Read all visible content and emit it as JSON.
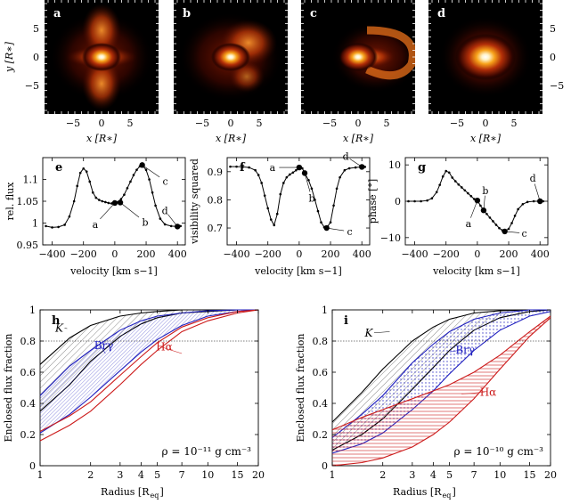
{
  "chart_data": [
    {
      "panel": "a",
      "type": "heatmap",
      "image": "disk with bipolar wind lobes",
      "xlabel": "x [R*]",
      "ylabel": "y [R*]",
      "xticks": [
        -5,
        0,
        5
      ],
      "yticks": [
        5,
        0,
        -5
      ],
      "xlim": [
        -10,
        10
      ],
      "ylim": [
        -10,
        10
      ],
      "colormap": "black-red-orange-white"
    },
    {
      "panel": "b",
      "type": "heatmap",
      "image": "asymmetric bright lobe on upper right",
      "xlabel": "x [R*]",
      "xticks": [
        -5,
        0,
        5
      ],
      "xlim": [
        -10,
        10
      ],
      "ylim": [
        -10,
        10
      ]
    },
    {
      "panel": "c",
      "type": "heatmap",
      "image": "bright arc to the right of the star",
      "xlabel": "x [R*]",
      "xticks": [
        -5,
        0,
        5
      ],
      "xlim": [
        -10,
        10
      ],
      "ylim": [
        -10,
        10
      ]
    },
    {
      "panel": "d",
      "type": "heatmap",
      "image": "compact symmetric continuum source",
      "xlabel": "x [R*]",
      "ylabel": "",
      "xticks": [
        -5,
        0,
        5
      ],
      "yticks": [
        5,
        0,
        -5
      ],
      "xlim": [
        -10,
        10
      ],
      "ylim": [
        -10,
        10
      ]
    },
    {
      "panel": "e",
      "type": "line",
      "xlabel": "velocity [km s−1]",
      "ylabel": "rel. flux",
      "xlim": [
        -460,
        450
      ],
      "ylim": [
        0.95,
        1.15
      ],
      "xticks": [
        -400,
        -200,
        0,
        200,
        400
      ],
      "yticks": [
        0.95,
        1,
        1.05,
        1.1
      ],
      "ytick_labels": [
        "0.95",
        "1",
        "1.05",
        "1.1"
      ],
      "x": [
        -440,
        -400,
        -360,
        -320,
        -290,
        -260,
        -240,
        -220,
        -200,
        -180,
        -160,
        -140,
        -120,
        -100,
        -80,
        -60,
        -40,
        -20,
        0,
        20,
        40,
        60,
        80,
        100,
        120,
        140,
        160,
        175,
        200,
        220,
        240,
        260,
        290,
        320,
        360,
        400,
        420
      ],
      "y": [
        0.993,
        0.99,
        0.991,
        0.996,
        1.015,
        1.05,
        1.085,
        1.115,
        1.125,
        1.118,
        1.095,
        1.07,
        1.058,
        1.053,
        1.05,
        1.048,
        1.046,
        1.045,
        1.046,
        1.048,
        1.055,
        1.065,
        1.08,
        1.095,
        1.11,
        1.122,
        1.13,
        1.133,
        1.122,
        1.1,
        1.07,
        1.04,
        1.01,
        0.997,
        0.993,
        0.992,
        0.993
      ],
      "marked_points": [
        {
          "label": "a",
          "x": 0,
          "y": 1.046
        },
        {
          "label": "b",
          "x": 35,
          "y": 1.047
        },
        {
          "label": "c",
          "x": 175,
          "y": 1.133
        },
        {
          "label": "d",
          "x": 400,
          "y": 0.992
        }
      ]
    },
    {
      "panel": "f",
      "type": "line",
      "xlabel": "velocity [km s−1]",
      "ylabel": "visibility squared",
      "xlim": [
        -460,
        450
      ],
      "ylim": [
        0.64,
        0.95
      ],
      "xticks": [
        -400,
        -200,
        0,
        200,
        400
      ],
      "yticks": [
        0.7,
        0.8,
        0.9
      ],
      "ytick_labels": [
        "0.7",
        "0.8",
        "0.9"
      ],
      "x": [
        -440,
        -400,
        -360,
        -320,
        -280,
        -260,
        -240,
        -220,
        -200,
        -180,
        -160,
        -140,
        -120,
        -100,
        -80,
        -60,
        -40,
        -20,
        0,
        20,
        35,
        60,
        80,
        100,
        120,
        140,
        160,
        175,
        200,
        220,
        240,
        260,
        290,
        320,
        360,
        400,
        420
      ],
      "y": [
        0.918,
        0.918,
        0.917,
        0.915,
        0.905,
        0.888,
        0.86,
        0.815,
        0.77,
        0.73,
        0.71,
        0.75,
        0.82,
        0.86,
        0.88,
        0.89,
        0.897,
        0.905,
        0.915,
        0.912,
        0.895,
        0.87,
        0.84,
        0.8,
        0.76,
        0.72,
        0.703,
        0.7,
        0.72,
        0.78,
        0.84,
        0.88,
        0.905,
        0.912,
        0.915,
        0.917,
        0.917
      ],
      "marked_points": [
        {
          "label": "a",
          "x": 0,
          "y": 0.915
        },
        {
          "label": "b",
          "x": 35,
          "y": 0.895
        },
        {
          "label": "c",
          "x": 175,
          "y": 0.7
        },
        {
          "label": "d",
          "x": 400,
          "y": 0.917
        }
      ]
    },
    {
      "panel": "g",
      "type": "line",
      "xlabel": "velocity [km s−1]",
      "ylabel": "phase [°]",
      "xlim": [
        -460,
        450
      ],
      "ylim": [
        -12,
        12
      ],
      "xticks": [
        -400,
        -200,
        0,
        200,
        400
      ],
      "yticks": [
        -10,
        0,
        10
      ],
      "ytick_labels": [
        "−10",
        "0",
        "10"
      ],
      "x": [
        -440,
        -400,
        -360,
        -320,
        -290,
        -260,
        -240,
        -220,
        -200,
        -180,
        -160,
        -140,
        -120,
        -100,
        -80,
        -60,
        -40,
        -20,
        0,
        20,
        40,
        60,
        80,
        100,
        120,
        140,
        160,
        175,
        200,
        220,
        240,
        260,
        290,
        320,
        360,
        400,
        420
      ],
      "y": [
        0,
        0,
        0,
        0.2,
        0.8,
        2.5,
        4.5,
        6.8,
        8.3,
        7.9,
        6.5,
        5.5,
        4.6,
        3.8,
        3.0,
        2.2,
        1.4,
        0.6,
        0.2,
        -1.2,
        -2.5,
        -3.5,
        -4.5,
        -5.5,
        -6.5,
        -7.4,
        -8.0,
        -8.3,
        -7.6,
        -6.0,
        -4.0,
        -2.2,
        -0.8,
        -0.2,
        0,
        0,
        0
      ],
      "marked_points": [
        {
          "label": "a",
          "x": 0,
          "y": 0.2
        },
        {
          "label": "b",
          "x": 40,
          "y": -2.5
        },
        {
          "label": "c",
          "x": 175,
          "y": -8.3
        },
        {
          "label": "d",
          "x": 400,
          "y": 0
        }
      ]
    },
    {
      "panel": "h",
      "type": "area",
      "xlabel": "Radius [R_eq]",
      "ylabel": "Enclosed flux fraction",
      "xscale": "log",
      "xlim": [
        1,
        20
      ],
      "ylim": [
        0,
        1
      ],
      "xticks": [
        1,
        2,
        3,
        4,
        5,
        7,
        10,
        15,
        20
      ],
      "yticks": [
        0,
        0.2,
        0.4,
        0.6,
        0.8,
        1
      ],
      "ytick_labels": [
        "0",
        "0.2",
        "0.4",
        "0.6",
        "0.8",
        "1"
      ],
      "reference_line": 0.8,
      "annotation": "ρ = 10⁻¹¹ g cm⁻³",
      "series": [
        {
          "name": "K",
          "color": "#000000",
          "hatch": "diagonal",
          "x": [
            1,
            1.5,
            2,
            3,
            4,
            5,
            7,
            10,
            15,
            20
          ],
          "upper": [
            0.65,
            0.82,
            0.9,
            0.96,
            0.98,
            0.99,
            1.0,
            1.0,
            1.0,
            1.0
          ],
          "lower": [
            0.35,
            0.52,
            0.67,
            0.83,
            0.91,
            0.95,
            0.98,
            0.99,
            1.0,
            1.0
          ]
        },
        {
          "name": "Brγ",
          "color": "#1f1fbf",
          "hatch": "dense",
          "x": [
            1,
            1.5,
            2,
            3,
            4,
            5,
            7,
            10,
            15,
            20
          ],
          "upper": [
            0.45,
            0.64,
            0.74,
            0.87,
            0.93,
            0.96,
            0.98,
            0.995,
            1.0,
            1.0
          ],
          "lower": [
            0.21,
            0.33,
            0.44,
            0.61,
            0.73,
            0.81,
            0.9,
            0.96,
            0.99,
            1.0
          ]
        },
        {
          "name": "Hα",
          "color": "#cc1a1a",
          "hatch": "none",
          "x": [
            1,
            1.5,
            2,
            3,
            4,
            5,
            7,
            10,
            15,
            20
          ],
          "upper": [
            0.22,
            0.32,
            0.41,
            0.58,
            0.7,
            0.79,
            0.89,
            0.95,
            0.99,
            1.0
          ],
          "lower": [
            0.16,
            0.26,
            0.35,
            0.52,
            0.65,
            0.74,
            0.86,
            0.93,
            0.98,
            1.0
          ]
        }
      ]
    },
    {
      "panel": "i",
      "type": "area",
      "xlabel": "Radius [R_eq]",
      "ylabel": "Enclosed flux fraction",
      "xscale": "log",
      "xlim": [
        1,
        20
      ],
      "ylim": [
        0,
        1
      ],
      "xticks": [
        1,
        2,
        3,
        4,
        5,
        7,
        10,
        15,
        20
      ],
      "yticks": [
        0,
        0.2,
        0.4,
        0.6,
        0.8,
        1
      ],
      "ytick_labels": [
        "0",
        "0.2",
        "0.4",
        "0.6",
        "0.8",
        "1"
      ],
      "reference_line": 0.8,
      "annotation": "ρ = 10⁻¹⁰ g cm⁻³",
      "series": [
        {
          "name": "K",
          "color": "#000000",
          "hatch": "diagonal",
          "x": [
            1,
            1.5,
            2,
            3,
            4,
            5,
            7,
            10,
            15,
            20
          ],
          "upper": [
            0.28,
            0.47,
            0.62,
            0.8,
            0.89,
            0.94,
            0.98,
            0.995,
            1.0,
            1.0
          ],
          "lower": [
            0.1,
            0.2,
            0.3,
            0.49,
            0.63,
            0.74,
            0.87,
            0.95,
            0.99,
            1.0
          ]
        },
        {
          "name": "Brγ",
          "color": "#1f1fbf",
          "hatch": "dots",
          "x": [
            1,
            1.5,
            2,
            3,
            4,
            5,
            7,
            10,
            15,
            20
          ],
          "upper": [
            0.18,
            0.33,
            0.45,
            0.66,
            0.78,
            0.86,
            0.94,
            0.98,
            1.0,
            1.0
          ],
          "lower": [
            0.08,
            0.14,
            0.21,
            0.36,
            0.48,
            0.59,
            0.74,
            0.87,
            0.96,
            0.99
          ]
        },
        {
          "name": "Hα",
          "color": "#cc1a1a",
          "hatch": "horizontal",
          "x": [
            1,
            1.5,
            2,
            3,
            4,
            5,
            7,
            10,
            15,
            20
          ],
          "upper": [
            0.23,
            0.31,
            0.36,
            0.43,
            0.48,
            0.52,
            0.6,
            0.71,
            0.86,
            0.96
          ],
          "lower": [
            0.0,
            0.02,
            0.05,
            0.12,
            0.2,
            0.28,
            0.43,
            0.62,
            0.83,
            0.95
          ]
        }
      ]
    }
  ]
}
